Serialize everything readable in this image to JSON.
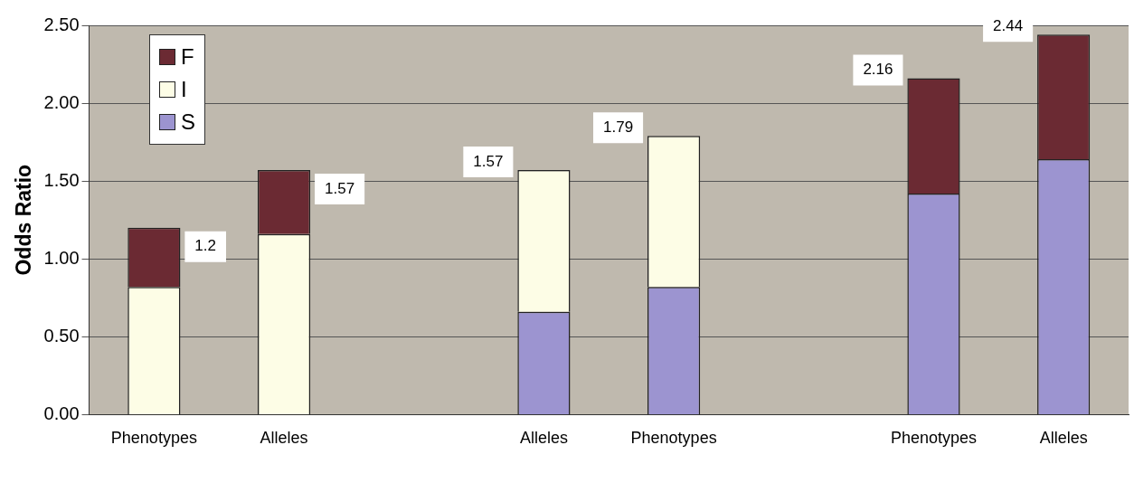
{
  "chart_data": {
    "type": "bar",
    "ylabel": "Odds Ratio",
    "categories": [
      "Phenotypes",
      "Alleles",
      null,
      "Alleles",
      "Phenotypes",
      null,
      "Phenotypes",
      "Alleles"
    ],
    "stacked": true,
    "series": [
      {
        "name": "S",
        "color": "#9c94d0",
        "values": [
          null,
          null,
          null,
          0.66,
          0.82,
          null,
          1.42,
          1.64
        ]
      },
      {
        "name": "I",
        "color": "#fdfde6",
        "values": [
          0.82,
          1.16,
          null,
          0.91,
          0.97,
          null,
          null,
          null
        ]
      },
      {
        "name": "F",
        "color": "#6b2a33",
        "values": [
          0.38,
          0.41,
          null,
          null,
          null,
          null,
          0.74,
          0.8
        ]
      }
    ],
    "totals": [
      "1.2",
      "1.57",
      null,
      "1.57",
      "1.79",
      null,
      "2.16",
      "2.44"
    ],
    "ylim": [
      0,
      2.5
    ],
    "yticks": [
      {
        "value": 0,
        "label": "0.00"
      },
      {
        "value": 0.5,
        "label": "0.50"
      },
      {
        "value": 1,
        "label": "1.00"
      },
      {
        "value": 1.5,
        "label": "1.50"
      },
      {
        "value": 2,
        "label": "2.00"
      },
      {
        "value": 2.5,
        "label": "2.50"
      }
    ],
    "grid": "y",
    "legend": "top left"
  }
}
